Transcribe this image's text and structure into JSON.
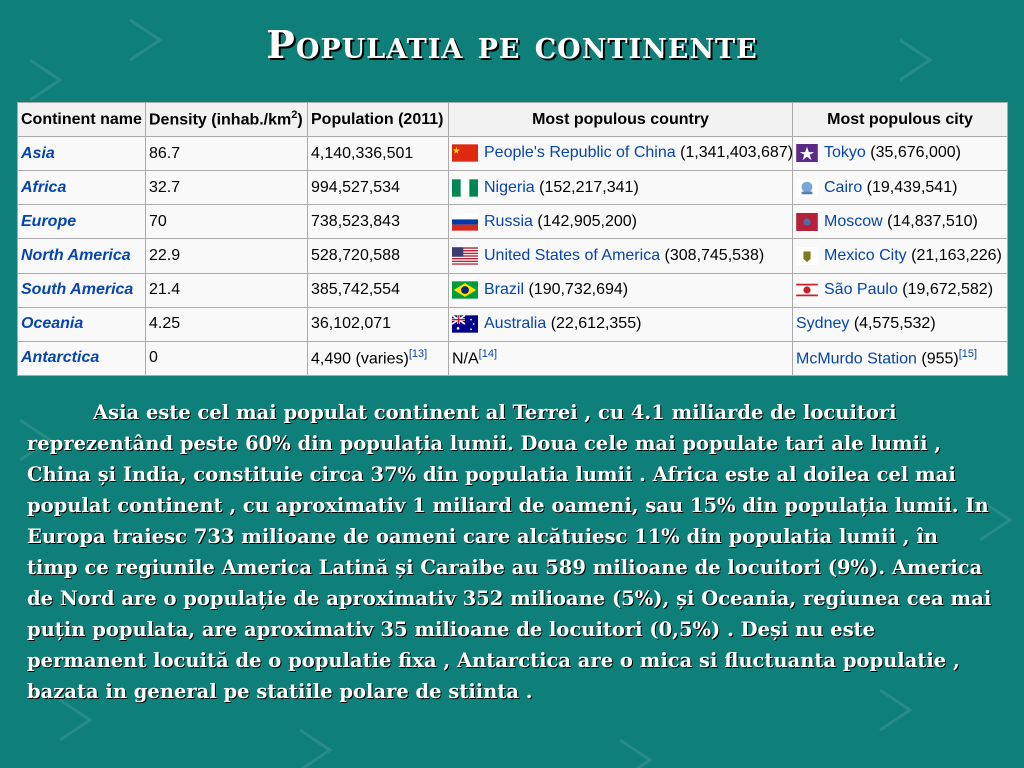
{
  "slide": {
    "title": "Populatia pe continente"
  },
  "table": {
    "headers": {
      "continent": "Continent name",
      "density": "Density (inhab./km",
      "density_sup": "2",
      "density_close": ")",
      "population": "Population (2011)",
      "country": "Most populous country",
      "city": "Most populous city"
    },
    "rows": [
      {
        "continent": "Asia",
        "density": "86.7",
        "population": "4,140,336,501",
        "country_link": "People's Republic of China",
        "country_rest": " (1,341,403,687)",
        "country_flag": "china-flag-icon",
        "city_link": "Tokyo",
        "city_rest": " (35,676,000)",
        "city_icon": "tokyo-emblem-icon"
      },
      {
        "continent": "Africa",
        "density": "32.7",
        "population": "994,527,534",
        "country_link": "Nigeria",
        "country_rest": " (152,217,341)",
        "country_flag": "nigeria-flag-icon",
        "city_link": "Cairo",
        "city_rest": " (19,439,541)",
        "city_icon": "cairo-emblem-icon"
      },
      {
        "continent": "Europe",
        "density": "70",
        "population": "738,523,843",
        "country_link": "Russia",
        "country_rest": " (142,905,200)",
        "country_flag": "russia-flag-icon",
        "city_link": "Moscow",
        "city_rest": " (14,837,510)",
        "city_icon": "moscow-flag-icon"
      },
      {
        "continent": "North America",
        "density": "22.9",
        "population": "528,720,588",
        "country_link": "United States of America",
        "country_rest": " (308,745,538)",
        "country_flag": "usa-flag-icon",
        "city_link": "Mexico City",
        "city_rest": " (21,163,226)",
        "city_icon": "mexico-city-emblem-icon"
      },
      {
        "continent": "South America",
        "density": "21.4",
        "population": "385,742,554",
        "country_link": "Brazil",
        "country_rest": " (190,732,694)",
        "country_flag": "brazil-flag-icon",
        "city_link": "São Paulo",
        "city_rest": " (19,672,582)",
        "city_icon": "sao-paulo-flag-icon"
      },
      {
        "continent": "Oceania",
        "density": "4.25",
        "population": "36,102,071",
        "country_link": "Australia",
        "country_rest": " (22,612,355)",
        "country_flag": "australia-flag-icon",
        "city_link": "Sydney",
        "city_rest": " (4,575,532)",
        "city_icon": ""
      },
      {
        "continent": "Antarctica",
        "density": "0",
        "population": "4,490 (varies)",
        "population_sup": "[13]",
        "country_link": "",
        "country_rest": "N/A",
        "country_sup": "[14]",
        "country_flag": "",
        "city_link": "McMurdo Station",
        "city_rest": " (955)",
        "city_sup": "[15]",
        "city_icon": ""
      }
    ]
  },
  "paragraph": "Asia este cel mai populat continent al Terrei , cu 4.1 miliarde de locuitori reprezentând peste 60% din populația lumii. Doua cele mai populate tari ale lumii , China și India, constituie circa 37% din populatia lumii . Africa este al doilea cel mai populat continent , cu aproximativ 1 miliard de oameni, sau 15% din populația lumii. In Europa traiesc  733 milioane de oameni care alcătuiesc 11% din populatia lumii , în timp ce regiunile America Latină și Caraibe au 589 milioane de locuitori (9%). America de Nord are o populație de aproximativ 352 milioane (5%), și Oceania, regiunea cea mai puțin populata, are aproximativ 35 milioane de locuitori (0,5%) . Deși nu este permanent locuită de o populatie fixa , Antarctica are o mica si fluctuanta populatie , bazata in general pe statiile polare de stiinta ."
}
